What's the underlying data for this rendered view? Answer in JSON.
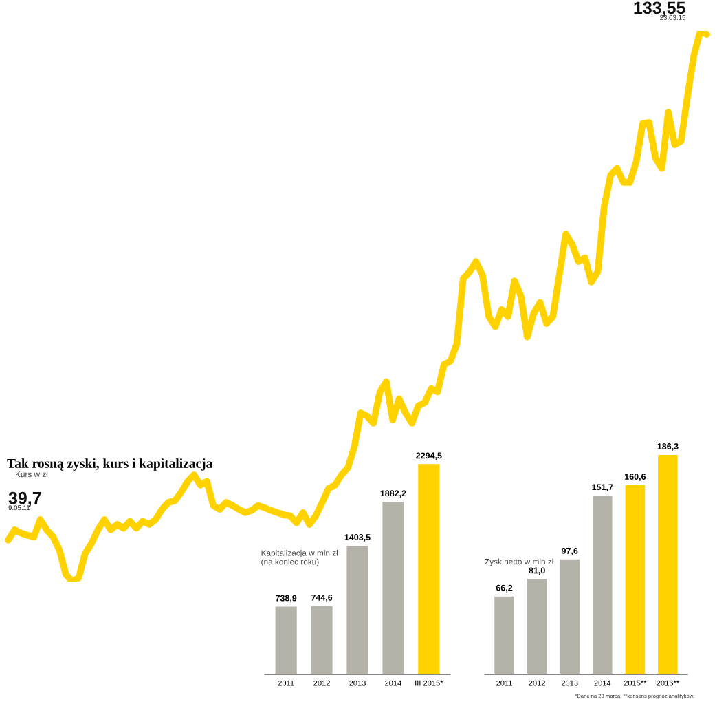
{
  "chart_data": [
    {
      "type": "line",
      "title": "Tak rosną zyski, kurs i kapitalizacja",
      "subtitle": "Kurs w zł",
      "categories": [
        null,
        null,
        null,
        null,
        null,
        null,
        null,
        null,
        null,
        null,
        null,
        null,
        null,
        null,
        null,
        null,
        null,
        null,
        null,
        null,
        null,
        null,
        null,
        null,
        null,
        null,
        null,
        null,
        null,
        null,
        null,
        null,
        null,
        null,
        null,
        null,
        null,
        null,
        null,
        null,
        null,
        null,
        null,
        null,
        null,
        null,
        null,
        null,
        null,
        null,
        null,
        null,
        null,
        null,
        null,
        null,
        null,
        null,
        null,
        null,
        null,
        null,
        null,
        null,
        null,
        null,
        null,
        null,
        null,
        null,
        null,
        null,
        null,
        null,
        null,
        null,
        null,
        null,
        null,
        null,
        null,
        null,
        null,
        null,
        null,
        null,
        null,
        null,
        null,
        null,
        null,
        null,
        null,
        null,
        null,
        null,
        null,
        null,
        null,
        null,
        null,
        null,
        null,
        null,
        null,
        null,
        null,
        null,
        null,
        null
      ],
      "series": [
        {
          "color": "#ffd200",
          "values": [
            39.7,
            41.6,
            41.0,
            40.6,
            40.3,
            43.5,
            41.6,
            40.3,
            37.8,
            33.3,
            32.0,
            32.7,
            37.2,
            39.1,
            41.6,
            43.5,
            41.6,
            42.6,
            41.9,
            43.2,
            41.9,
            43.2,
            42.6,
            43.5,
            45.4,
            46.7,
            47.0,
            48.6,
            50.6,
            51.8,
            49.9,
            50.6,
            46.1,
            45.4,
            46.7,
            46.1,
            45.4,
            44.8,
            45.2,
            46.1,
            45.7,
            45.2,
            44.8,
            44.4,
            44.2,
            42.9,
            44.8,
            42.6,
            44.2,
            46.7,
            49.3,
            49.9,
            51.8,
            53.1,
            56.9,
            63.3,
            62.7,
            61.4,
            67.2,
            69.1,
            62.0,
            65.9,
            63.3,
            61.4,
            64.6,
            65.2,
            67.8,
            67.2,
            72.3,
            72.9,
            76.1,
            88.2,
            89.5,
            91.4,
            88.9,
            81.2,
            79.3,
            82.5,
            81.2,
            87.8,
            85.0,
            77.4,
            81.8,
            83.8,
            79.9,
            81.2,
            88.9,
            96.5,
            94.6,
            91.4,
            92.1,
            87.6,
            89.5,
            101.6,
            107.4,
            108.7,
            106.1,
            106.1,
            109.9,
            117.0,
            117.2,
            110.6,
            108.7,
            119.1,
            113.1,
            113.8,
            122.1,
            129.7,
            134.2,
            133.55
          ],
          "value_labels": [
            "39,7",
            null,
            null,
            null,
            null,
            null,
            null,
            null,
            null,
            null,
            null,
            null,
            null,
            null,
            null,
            null,
            null,
            null,
            null,
            null,
            null,
            null,
            null,
            null,
            null,
            null,
            null,
            null,
            null,
            null,
            null,
            null,
            null,
            null,
            null,
            null,
            null,
            null,
            null,
            null,
            null,
            null,
            null,
            null,
            null,
            null,
            null,
            null,
            null,
            null,
            null,
            null,
            null,
            null,
            null,
            null,
            null,
            null,
            null,
            null,
            null,
            null,
            null,
            null,
            null,
            null,
            null,
            null,
            null,
            null,
            null,
            null,
            null,
            null,
            null,
            null,
            null,
            null,
            null,
            null,
            null,
            null,
            null,
            null,
            null,
            null,
            null,
            null,
            null,
            null,
            null,
            null,
            null,
            null,
            null,
            null,
            null,
            null,
            null,
            null,
            null,
            null,
            null,
            null,
            null,
            null,
            null,
            null,
            null,
            "133,55"
          ]
        }
      ],
      "tick_labels": false,
      "grid": false,
      "legend": false,
      "line_style": "solid",
      "marker": "none",
      "annotations": [
        "9.05.11",
        "23.03.15"
      ]
    },
    {
      "type": "bar",
      "title": "Kapitalizacja w mln zł\n(na koniec roku)",
      "categories": [
        "2011",
        "2012",
        "2013",
        "2014",
        "III 2015*"
      ],
      "values": [
        738.9,
        744.6,
        1403.5,
        1882.2,
        2294.5
      ],
      "colors": [
        "#b5b2aa",
        "#b5b2aa",
        "#b5b2aa",
        "#b5b2aa",
        "#ffd200"
      ],
      "value_labels": [
        "738,9",
        "744,6",
        "1403,5",
        "1882,2",
        "2294,5"
      ],
      "tick_labels": "x",
      "grid": false
    },
    {
      "type": "bar",
      "title": "Zysk netto w mln zł",
      "categories": [
        "2011",
        "2012",
        "2013",
        "2014",
        "2015**",
        "2016**"
      ],
      "values": [
        66.2,
        81.0,
        97.6,
        151.7,
        160.6,
        186.3
      ],
      "colors": [
        "#b5b2aa",
        "#b5b2aa",
        "#b5b2aa",
        "#b5b2aa",
        "#ffd200",
        "#ffd200"
      ],
      "value_labels": [
        "66,2",
        "81,0",
        "97,6",
        "151,7",
        "160,6",
        "186,3"
      ],
      "tick_labels": "x",
      "grid": false,
      "annotations": [
        "*Dane na 23 marca; **konsens prognoz analityków."
      ]
    }
  ]
}
